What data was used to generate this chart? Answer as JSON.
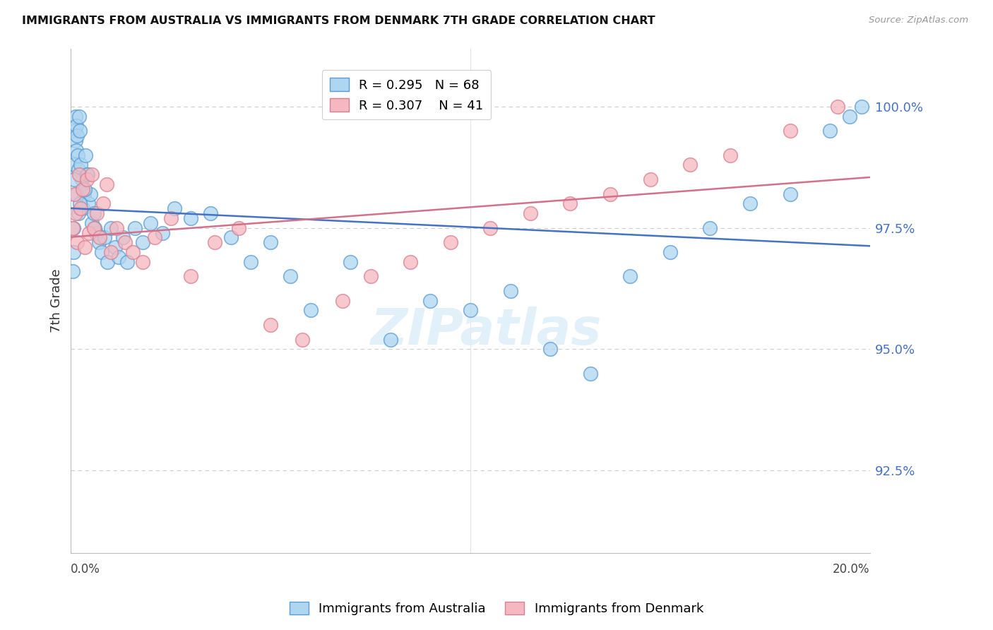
{
  "title": "IMMIGRANTS FROM AUSTRALIA VS IMMIGRANTS FROM DENMARK 7TH GRADE CORRELATION CHART",
  "source": "Source: ZipAtlas.com",
  "ylabel": "7th Grade",
  "yticks": [
    92.5,
    95.0,
    97.5,
    100.0
  ],
  "ytick_labels": [
    "92.5%",
    "95.0%",
    "97.5%",
    "100.0%"
  ],
  "xlim": [
    0.0,
    20.0
  ],
  "ylim": [
    90.8,
    101.2
  ],
  "australia_fill": "#aed6f1",
  "australia_edge": "#5b9bd5",
  "denmark_fill": "#f5b7c0",
  "denmark_edge": "#d98090",
  "australia_line_color": "#4472C4",
  "denmark_line_color": "#D4708A",
  "R_australia": 0.295,
  "N_australia": 68,
  "R_denmark": 0.307,
  "N_denmark": 41,
  "watermark_text": "ZIPatlas",
  "legend_label_australia": "Immigrants from Australia",
  "legend_label_denmark": "Immigrants from Denmark",
  "australia_x": [
    0.05,
    0.07,
    0.09,
    0.1,
    0.11,
    0.12,
    0.13,
    0.14,
    0.15,
    0.17,
    0.19,
    0.21,
    0.23,
    0.25,
    0.27,
    0.3,
    0.33,
    0.36,
    0.4,
    0.44,
    0.48,
    0.53,
    0.58,
    0.63,
    0.7,
    0.78,
    0.85,
    0.92,
    1.0,
    1.1,
    1.2,
    1.3,
    1.4,
    1.6,
    1.8,
    2.0,
    2.3,
    2.6,
    3.0,
    3.5,
    4.0,
    4.5,
    5.0,
    5.5,
    6.0,
    7.0,
    8.0,
    9.0,
    10.0,
    11.0,
    12.0,
    13.0,
    14.0,
    15.0,
    16.0,
    17.0,
    18.0,
    19.0,
    19.5,
    19.8,
    0.06,
    0.08,
    0.13,
    0.18,
    0.22,
    0.35,
    0.42,
    0.6
  ],
  "australia_y": [
    96.6,
    97.5,
    98.8,
    99.5,
    99.8,
    99.3,
    99.6,
    99.1,
    99.4,
    99.0,
    98.7,
    99.8,
    99.5,
    98.8,
    98.5,
    97.9,
    98.2,
    99.0,
    98.6,
    98.0,
    98.2,
    97.6,
    97.8,
    97.4,
    97.2,
    97.0,
    97.3,
    96.8,
    97.5,
    97.1,
    96.9,
    97.3,
    96.8,
    97.5,
    97.2,
    97.6,
    97.4,
    97.9,
    97.7,
    97.8,
    97.3,
    96.8,
    97.2,
    96.5,
    95.8,
    96.8,
    95.2,
    96.0,
    95.8,
    96.2,
    95.0,
    94.5,
    96.5,
    97.0,
    97.5,
    98.0,
    98.2,
    99.5,
    99.8,
    100.0,
    97.0,
    98.5,
    98.2,
    97.8,
    98.0,
    98.3,
    98.6,
    97.5
  ],
  "denmark_x": [
    0.05,
    0.08,
    0.12,
    0.16,
    0.2,
    0.25,
    0.3,
    0.35,
    0.4,
    0.46,
    0.52,
    0.58,
    0.65,
    0.72,
    0.8,
    0.9,
    1.0,
    1.15,
    1.35,
    1.55,
    1.8,
    2.1,
    2.5,
    3.0,
    3.6,
    4.2,
    5.0,
    5.8,
    6.8,
    7.5,
    8.5,
    9.5,
    10.5,
    11.5,
    12.5,
    13.5,
    14.5,
    15.5,
    16.5,
    18.0,
    19.2
  ],
  "denmark_y": [
    97.5,
    98.2,
    97.8,
    97.2,
    98.6,
    97.9,
    98.3,
    97.1,
    98.5,
    97.4,
    98.6,
    97.5,
    97.8,
    97.3,
    98.0,
    98.4,
    97.0,
    97.5,
    97.2,
    97.0,
    96.8,
    97.3,
    97.7,
    96.5,
    97.2,
    97.5,
    95.5,
    95.2,
    96.0,
    96.5,
    96.8,
    97.2,
    97.5,
    97.8,
    98.0,
    98.2,
    98.5,
    98.8,
    99.0,
    99.5,
    100.0
  ]
}
